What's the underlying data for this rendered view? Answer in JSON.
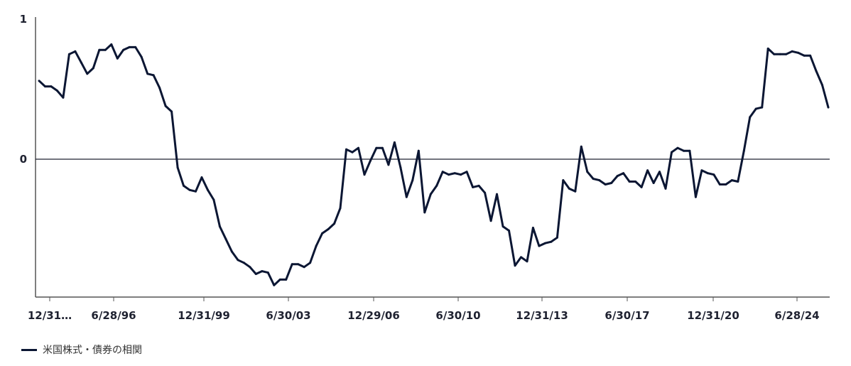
{
  "chart_data": {
    "type": "line",
    "x_ticks": [
      "12/31…",
      "6/28/96",
      "12/31/99",
      "6/30/03",
      "12/29/06",
      "6/30/10",
      "12/31/13",
      "6/30/17",
      "12/31/20",
      "6/28/24"
    ],
    "y_ticks": [
      "1",
      "0"
    ],
    "ylim": [
      -1,
      1
    ],
    "grid": false,
    "legend_position": "bottom-left",
    "series": [
      {
        "name": "米国株式・債券の相関",
        "color": "#0b1633",
        "values": [
          0.56,
          0.52,
          0.52,
          0.49,
          0.44,
          0.75,
          0.77,
          0.69,
          0.61,
          0.65,
          0.78,
          0.78,
          0.82,
          0.72,
          0.78,
          0.8,
          0.8,
          0.73,
          0.61,
          0.6,
          0.51,
          0.38,
          0.34,
          -0.06,
          -0.19,
          -0.22,
          -0.23,
          -0.13,
          -0.22,
          -0.29,
          -0.48,
          -0.57,
          -0.66,
          -0.72,
          -0.74,
          -0.77,
          -0.82,
          -0.8,
          -0.81,
          -0.9,
          -0.86,
          -0.86,
          -0.75,
          -0.75,
          -0.77,
          -0.74,
          -0.62,
          -0.53,
          -0.5,
          -0.46,
          -0.35,
          0.07,
          0.05,
          0.08,
          -0.11,
          -0.01,
          0.08,
          0.08,
          -0.04,
          0.12,
          -0.06,
          -0.27,
          -0.15,
          0.06,
          -0.38,
          -0.25,
          -0.19,
          -0.09,
          -0.11,
          -0.1,
          -0.11,
          -0.09,
          -0.2,
          -0.19,
          -0.24,
          -0.44,
          -0.25,
          -0.48,
          -0.51,
          -0.76,
          -0.7,
          -0.73,
          -0.49,
          -0.62,
          -0.6,
          -0.59,
          -0.56,
          -0.15,
          -0.21,
          -0.23,
          0.09,
          -0.09,
          -0.14,
          -0.15,
          -0.18,
          -0.17,
          -0.12,
          -0.1,
          -0.16,
          -0.16,
          -0.2,
          -0.08,
          -0.17,
          -0.09,
          -0.21,
          0.05,
          0.08,
          0.06,
          0.06,
          -0.27,
          -0.08,
          -0.1,
          -0.11,
          -0.18,
          -0.18,
          -0.15,
          -0.16,
          0.06,
          0.3,
          0.36,
          0.37,
          0.79,
          0.75,
          0.75,
          0.75,
          0.77,
          0.76,
          0.74,
          0.74,
          0.63,
          0.53,
          0.37
        ]
      }
    ]
  }
}
